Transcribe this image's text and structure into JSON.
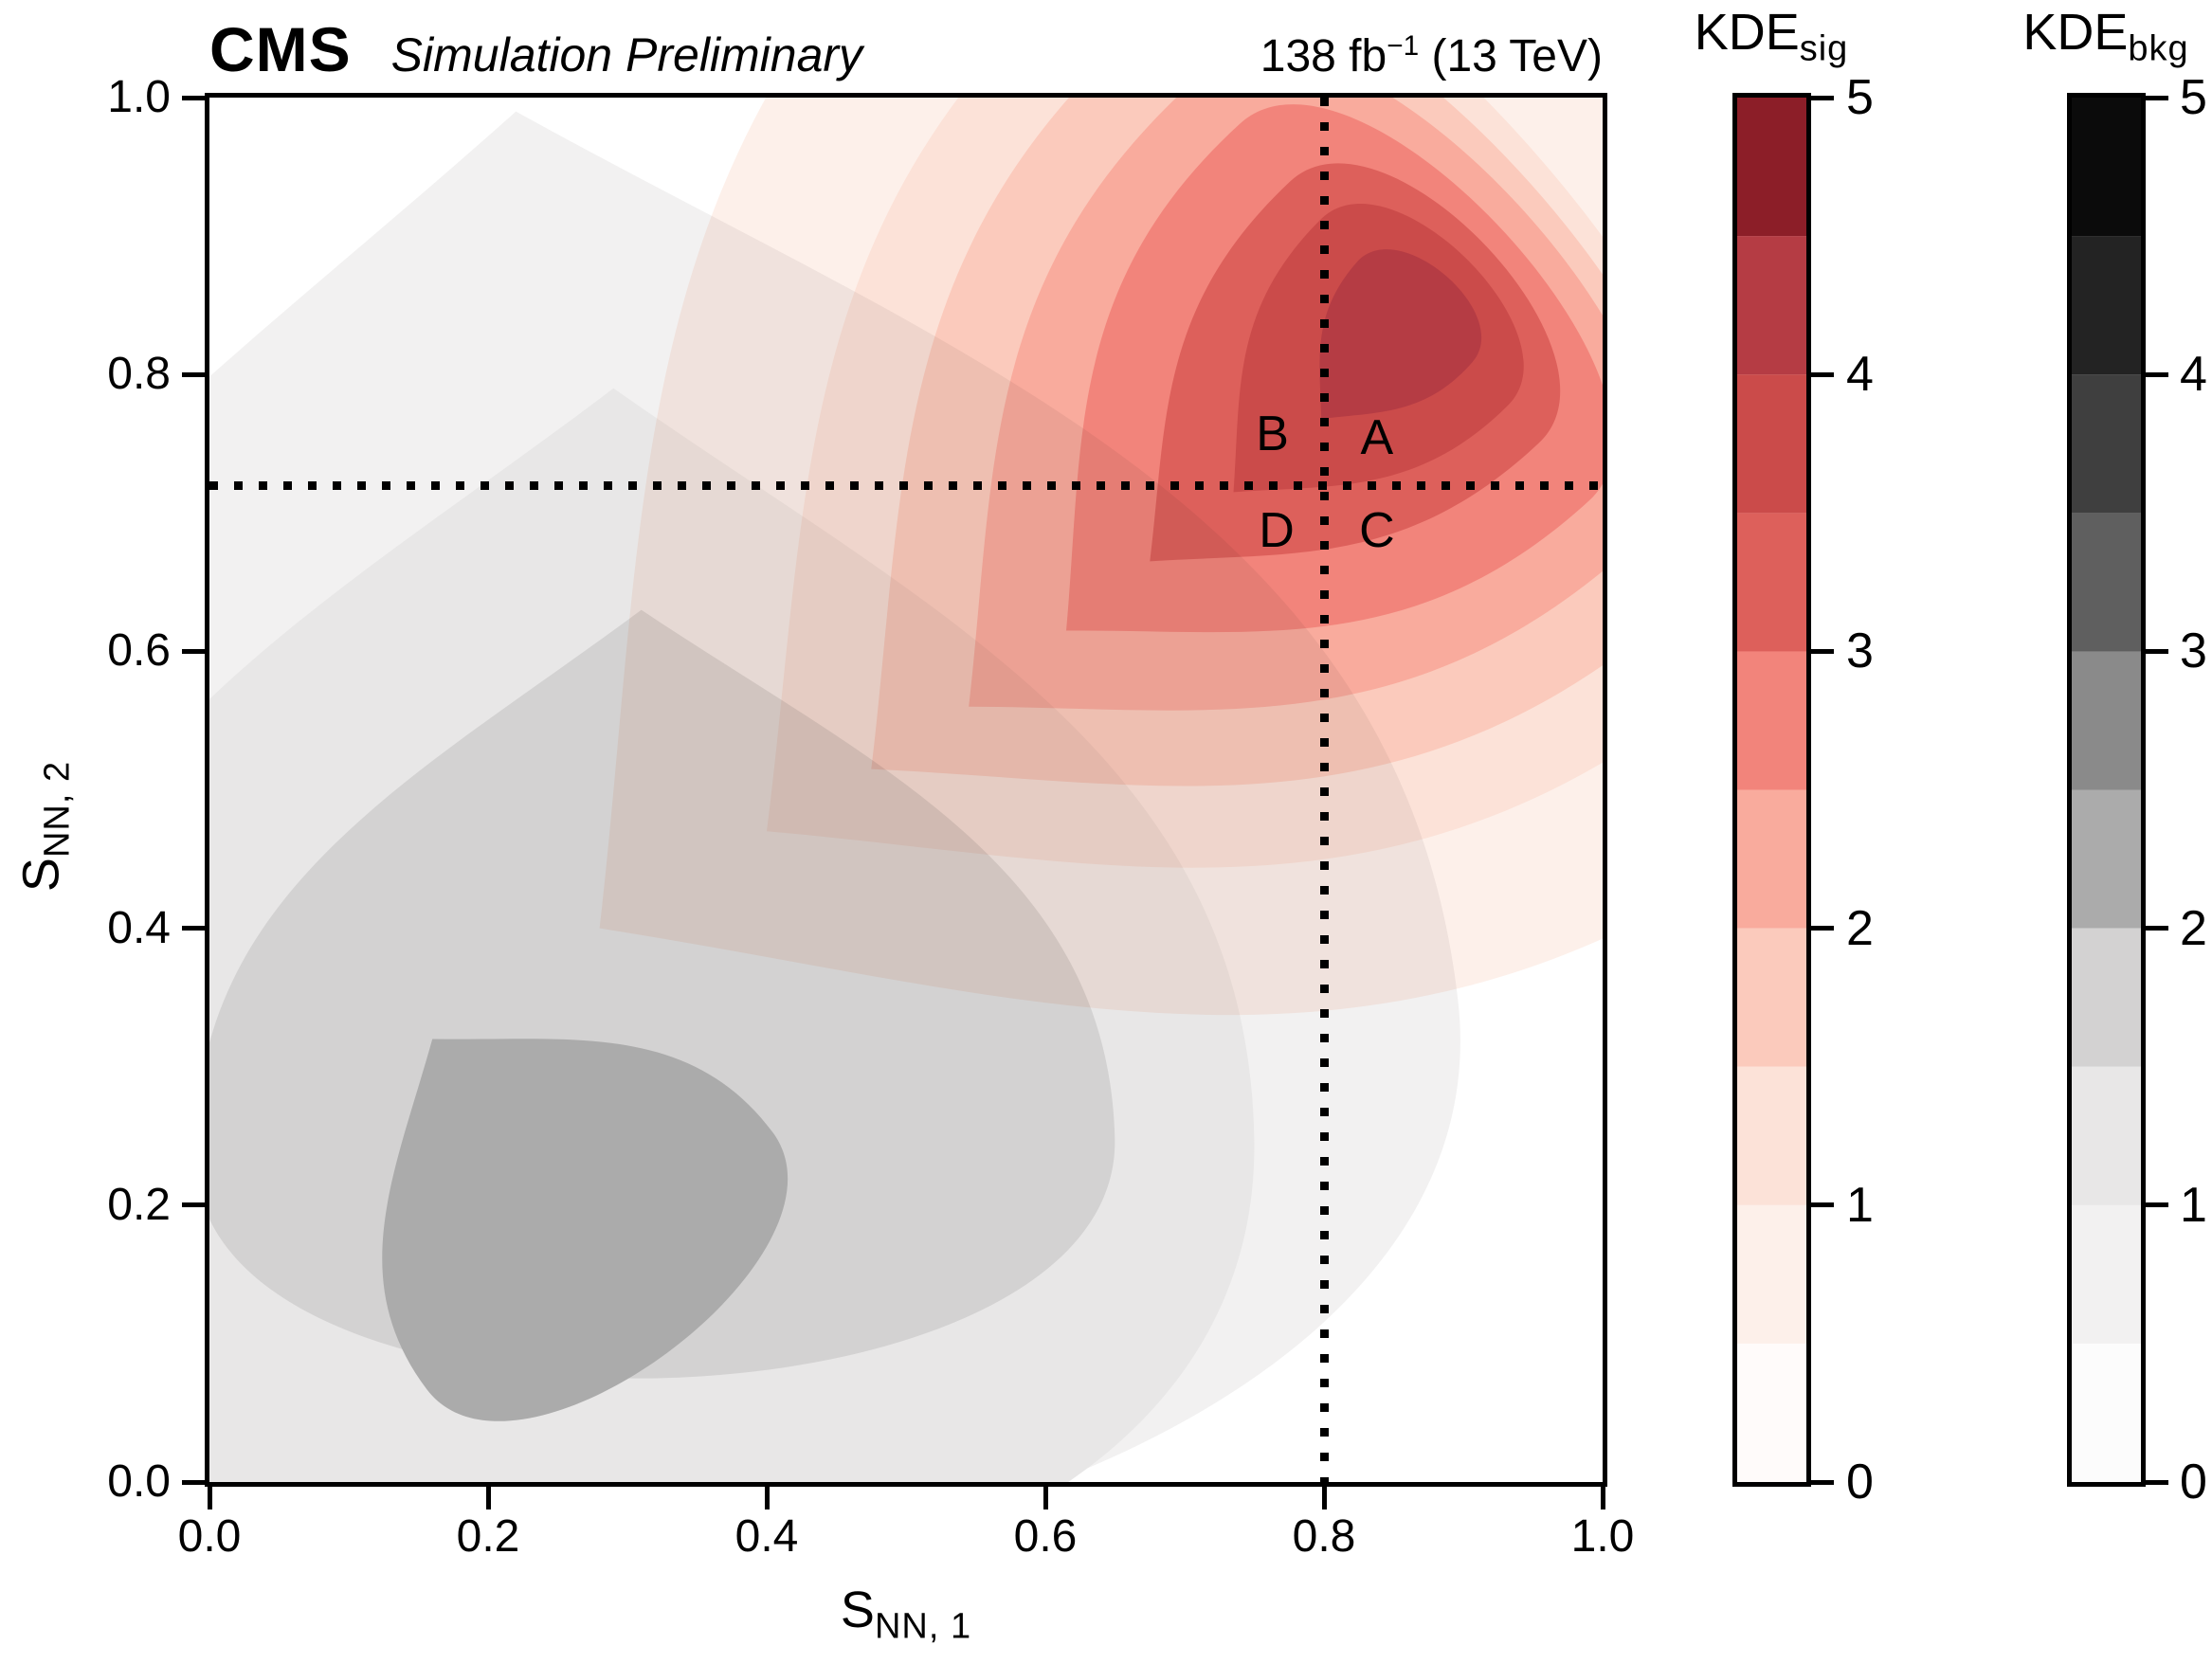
{
  "header": {
    "cms": "CMS",
    "sim": "Simulation Preliminary",
    "lumi": "138 fb",
    "lumi_sup": "−1",
    "lumi_rest": " (13 TeV)"
  },
  "axes": {
    "x": {
      "label_main": "S",
      "label_sub": "NN, 1",
      "tick_labels": [
        "0.0",
        "0.2",
        "0.4",
        "0.6",
        "0.8",
        "1.0"
      ]
    },
    "y": {
      "label_main": "S",
      "label_sub": "NN, 2",
      "tick_labels": [
        "0.0",
        "0.2",
        "0.4",
        "0.6",
        "0.8",
        "1.0"
      ]
    }
  },
  "regions": {
    "A": "A",
    "B": "B",
    "C": "C",
    "D": "D"
  },
  "colorbars": [
    {
      "title_main": "KDE",
      "title_sub": "sig",
      "tick_labels": [
        "0",
        "1",
        "2",
        "3",
        "4",
        "5"
      ],
      "colors": [
        "#fffbfa",
        "#fdf0ea",
        "#fce2d8",
        "#fbcabc",
        "#f9ab9d",
        "#f2847b",
        "#dd605b",
        "#cb4b4a",
        "#b53c44",
        "#8c1e28"
      ]
    },
    {
      "title_main": "KDE",
      "title_sub": "bkg",
      "tick_labels": [
        "0",
        "1",
        "2",
        "3",
        "4",
        "5"
      ],
      "colors": [
        "#fcfcfc",
        "#f2f1f1",
        "#e8e7e7",
        "#d3d2d2",
        "#ababab",
        "#8a8a8a",
        "#5f5f5f",
        "#3f3f3f",
        "#232323",
        "#0b0b0b"
      ]
    }
  ],
  "chart_data": {
    "type": "heatmap",
    "variant": "filled_contour_kde_2d",
    "title": "CMS Simulation Preliminary, 138 fb−1 (13 TeV)",
    "xlabel": "S_NN,1",
    "ylabel": "S_NN,2",
    "xlim": [
      0.0,
      1.0
    ],
    "ylim": [
      0.0,
      1.0
    ],
    "x_ticks": [
      0.0,
      0.2,
      0.4,
      0.6,
      0.8,
      1.0
    ],
    "y_ticks": [
      0.0,
      0.2,
      0.4,
      0.6,
      0.8,
      1.0
    ],
    "levels": [
      0,
      0.5,
      1,
      1.5,
      2,
      2.5,
      3,
      3.5,
      4,
      4.5,
      5
    ],
    "colorbar_range": [
      0,
      5
    ],
    "colorbar_ticks": [
      0,
      1,
      2,
      3,
      4,
      5
    ],
    "legend_position": "right-colorbars",
    "grid": false,
    "cut_lines": {
      "x": 0.8,
      "y": 0.72,
      "style": "dotted",
      "color": "#000000"
    },
    "region_labels": [
      {
        "label": "A",
        "x": 0.838,
        "y": 0.754
      },
      {
        "label": "B",
        "x": 0.763,
        "y": 0.757
      },
      {
        "label": "C",
        "x": 0.838,
        "y": 0.687
      },
      {
        "label": "D",
        "x": 0.766,
        "y": 0.687
      }
    ],
    "series": [
      {
        "name": "KDE_bkg",
        "colormap": "Greys",
        "colorbar_index": 1,
        "peak": [
          0.27,
          0.18
        ],
        "peak_level": 2.5,
        "bands": [
          {
            "level": 0.5,
            "head": [
              0.3,
              0.28
            ],
            "tail": [
              0.22,
              0.99
            ],
            "hw": 0.6,
            "cap": 0.42,
            "color": 1
          },
          {
            "level": 1.0,
            "head": [
              0.3,
              0.24
            ],
            "tail": [
              0.29,
              0.79
            ],
            "hw": 0.45,
            "cap": 0.4,
            "color": 2
          },
          {
            "level": 1.5,
            "head": [
              0.32,
              0.24
            ],
            "tail": [
              0.31,
              0.63
            ],
            "hw": 0.33,
            "cap": 0.2,
            "color": 3
          },
          {
            "level": 2.0,
            "head": [
              0.28,
              0.16
            ],
            "tail": [
              0.16,
              0.32
            ],
            "hw": 0.155,
            "cap": 0.1,
            "color": 4
          }
        ]
      },
      {
        "name": "KDE_sig",
        "colormap": "Reds",
        "colorbar_index": 0,
        "peak": [
          0.865,
          0.845
        ],
        "peak_level": 4.5,
        "bands": [
          {
            "level": 0.5,
            "head": [
              0.865,
              0.845
            ],
            "tail": [
              0.28,
              0.4
            ],
            "hw": 0.46,
            "cap": 0.26,
            "color": 1
          },
          {
            "level": 1.0,
            "head": [
              0.865,
              0.845
            ],
            "tail": [
              0.4,
              0.47
            ],
            "hw": 0.345,
            "cap": 0.17,
            "color": 2
          },
          {
            "level": 1.5,
            "head": [
              0.865,
              0.845
            ],
            "tail": [
              0.475,
              0.515
            ],
            "hw": 0.285,
            "cap": 0.15,
            "color": 3
          },
          {
            "level": 2.0,
            "head": [
              0.865,
              0.845
            ],
            "tail": [
              0.545,
              0.56
            ],
            "hw": 0.23,
            "cap": 0.13,
            "color": 4
          },
          {
            "level": 2.5,
            "head": [
              0.865,
              0.845
            ],
            "tail": [
              0.615,
              0.615
            ],
            "hw": 0.185,
            "cap": 0.105,
            "color": 5
          },
          {
            "level": 3.0,
            "head": [
              0.865,
              0.845
            ],
            "tail": [
              0.675,
              0.665
            ],
            "hw": 0.13,
            "cap": 0.085,
            "color": 6
          },
          {
            "level": 3.5,
            "head": [
              0.865,
              0.845
            ],
            "tail": [
              0.735,
              0.715
            ],
            "hw": 0.095,
            "cap": 0.065,
            "color": 7
          },
          {
            "level": 4.0,
            "head": [
              0.865,
              0.845
            ],
            "tail": [
              0.798,
              0.768
            ],
            "hw": 0.055,
            "cap": 0.042,
            "color": 8
          }
        ]
      }
    ]
  }
}
